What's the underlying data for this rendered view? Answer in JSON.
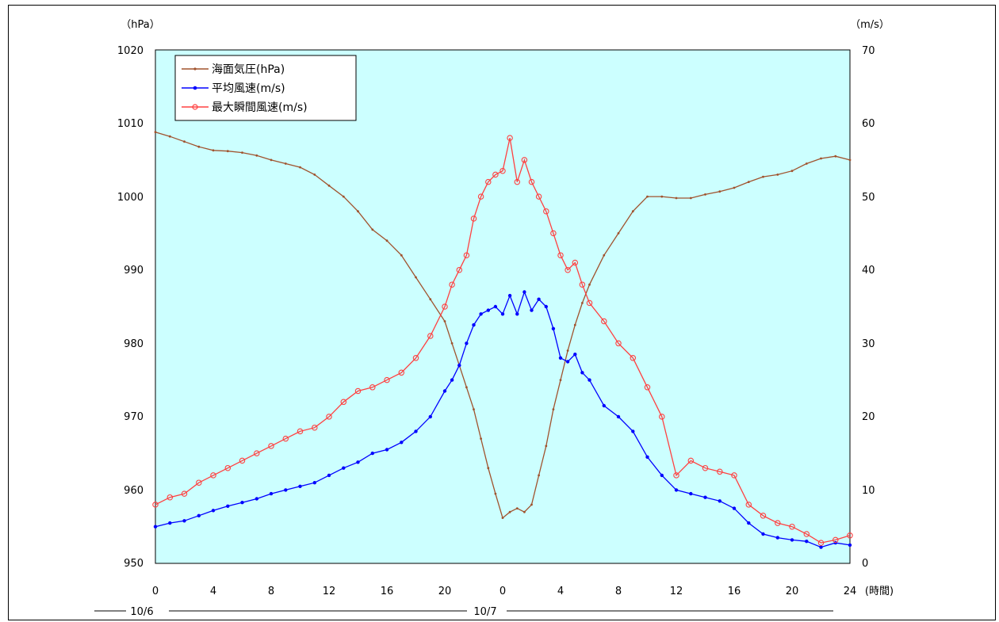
{
  "chart_data": {
    "type": "line",
    "y_left_unit": "（hPa）",
    "y_right_unit": "（m/s）",
    "x_unit": "(時間)",
    "y_left_range": [
      950,
      1020
    ],
    "y_left_ticks": [
      "950",
      "960",
      "970",
      "980",
      "990",
      "1000",
      "1010",
      "1020"
    ],
    "y_right_range": [
      0,
      70
    ],
    "y_right_ticks": [
      "0",
      "10",
      "20",
      "30",
      "40",
      "50",
      "60",
      "70"
    ],
    "x_range": [
      0,
      48
    ],
    "x_tick_labels": [
      "0",
      "4",
      "8",
      "12",
      "16",
      "20",
      "0",
      "4",
      "8",
      "12",
      "16",
      "20",
      "24"
    ],
    "x_tick_positions": [
      0,
      4,
      8,
      12,
      16,
      20,
      24,
      28,
      32,
      36,
      40,
      44,
      48
    ],
    "date_labels": [
      "10/6",
      "10/7"
    ],
    "grid": false,
    "legend_position": "top-left",
    "colors": {
      "plot_bg": "#ccffff",
      "pressure": "#a0522d",
      "mean_wind": "#0000ff",
      "gust": "#ff4040"
    },
    "series": [
      {
        "name": "海面気圧(hPa)",
        "axis": "left",
        "x": [
          0,
          1,
          2,
          3,
          4,
          5,
          6,
          7,
          8,
          9,
          10,
          11,
          12,
          13,
          14,
          15,
          16,
          17,
          18,
          19,
          20,
          20.5,
          21,
          21.5,
          22,
          22.5,
          23,
          23.5,
          24,
          24.5,
          25,
          25.5,
          26,
          26.5,
          27,
          27.5,
          28,
          28.5,
          29,
          29.5,
          30,
          31,
          32,
          33,
          34,
          35,
          36,
          37,
          38,
          39,
          40,
          41,
          42,
          43,
          44,
          45,
          46,
          47,
          48
        ],
        "values": [
          1008.8,
          1008.2,
          1007.5,
          1006.8,
          1006.3,
          1006.2,
          1006.0,
          1005.6,
          1005.0,
          1004.5,
          1004.0,
          1003.0,
          1001.5,
          1000.0,
          998.0,
          995.5,
          994.0,
          992.0,
          989.0,
          986.0,
          983.0,
          980.0,
          977.0,
          974.0,
          971.0,
          967.0,
          963.0,
          959.5,
          956.2,
          957.0,
          957.5,
          957.0,
          958.0,
          962.0,
          966.0,
          971.0,
          975.0,
          979.0,
          982.5,
          985.5,
          988.0,
          992.0,
          995.0,
          998.0,
          1000.0,
          1000.0,
          999.8,
          999.8,
          1000.3,
          1000.7,
          1001.2,
          1002.0,
          1002.7,
          1003.0,
          1003.5,
          1004.5,
          1005.2,
          1005.5,
          1005.0
        ]
      },
      {
        "name": "平均風速(m/s)",
        "axis": "right",
        "x": [
          0,
          1,
          2,
          3,
          4,
          5,
          6,
          7,
          8,
          9,
          10,
          11,
          12,
          13,
          14,
          15,
          16,
          17,
          18,
          19,
          20,
          20.5,
          21,
          21.5,
          22,
          22.5,
          23,
          23.5,
          24,
          24.5,
          25,
          25.5,
          26,
          26.5,
          27,
          27.5,
          28,
          28.5,
          29,
          29.5,
          30,
          31,
          32,
          33,
          34,
          35,
          36,
          37,
          38,
          39,
          40,
          41,
          42,
          43,
          44,
          45,
          46,
          47,
          48
        ],
        "values": [
          5.0,
          5.5,
          5.8,
          6.5,
          7.2,
          7.8,
          8.3,
          8.8,
          9.5,
          10.0,
          10.5,
          11.0,
          12.0,
          13.0,
          13.8,
          15.0,
          15.5,
          16.5,
          18.0,
          20.0,
          23.5,
          25.0,
          27.0,
          30.0,
          32.5,
          34.0,
          34.5,
          35.0,
          34.0,
          36.5,
          34.0,
          37.0,
          34.5,
          36.0,
          35.0,
          32.0,
          28.0,
          27.5,
          28.5,
          26.0,
          25.0,
          21.5,
          20.0,
          18.0,
          14.5,
          12.0,
          10.0,
          9.5,
          9.0,
          8.5,
          7.5,
          5.5,
          4.0,
          3.5,
          3.2,
          3.0,
          2.2,
          2.8,
          2.5
        ]
      },
      {
        "name": "最大瞬間風速(m/s)",
        "axis": "right",
        "x": [
          0,
          1,
          2,
          3,
          4,
          5,
          6,
          7,
          8,
          9,
          10,
          11,
          12,
          13,
          14,
          15,
          16,
          17,
          18,
          19,
          20,
          20.5,
          21,
          21.5,
          22,
          22.5,
          23,
          23.5,
          24,
          24.5,
          25,
          25.5,
          26,
          26.5,
          27,
          27.5,
          28,
          28.5,
          29,
          29.5,
          30,
          31,
          32,
          33,
          34,
          35,
          36,
          37,
          38,
          39,
          40,
          41,
          42,
          43,
          44,
          45,
          46,
          47,
          48
        ],
        "values": [
          8.0,
          9.0,
          9.5,
          11.0,
          12.0,
          13.0,
          14.0,
          15.0,
          16.0,
          17.0,
          18.0,
          18.5,
          20.0,
          22.0,
          23.5,
          24.0,
          25.0,
          26.0,
          28.0,
          31.0,
          35.0,
          38.0,
          40.0,
          42.0,
          47.0,
          50.0,
          52.0,
          53.0,
          53.5,
          58.0,
          52.0,
          55.0,
          52.0,
          50.0,
          48.0,
          45.0,
          42.0,
          40.0,
          41.0,
          38.0,
          35.5,
          33.0,
          30.0,
          28.0,
          24.0,
          20.0,
          12.0,
          14.0,
          13.0,
          12.5,
          12.0,
          8.0,
          6.5,
          5.5,
          5.0,
          4.0,
          2.8,
          3.2,
          3.8
        ]
      }
    ]
  }
}
